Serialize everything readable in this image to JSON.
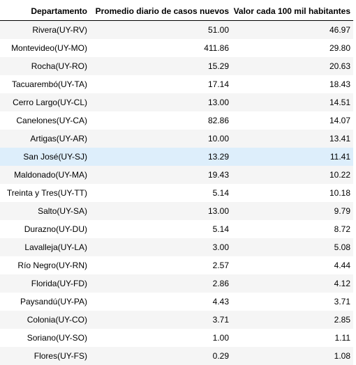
{
  "table": {
    "headers": [
      "Departamento",
      "Promedio diario de casos nuevos",
      "Valor cada 100 mil habitantes"
    ],
    "highlighted_row": 7,
    "rows": [
      [
        "Rivera(UY-RV)",
        "51.00",
        "46.97"
      ],
      [
        "Montevideo(UY-MO)",
        "411.86",
        "29.80"
      ],
      [
        "Rocha(UY-RO)",
        "15.29",
        "20.63"
      ],
      [
        "Tacuarembó(UY-TA)",
        "17.14",
        "18.43"
      ],
      [
        "Cerro Largo(UY-CL)",
        "13.00",
        "14.51"
      ],
      [
        "Canelones(UY-CA)",
        "82.86",
        "14.07"
      ],
      [
        "Artigas(UY-AR)",
        "10.00",
        "13.41"
      ],
      [
        "San José(UY-SJ)",
        "13.29",
        "11.41"
      ],
      [
        "Maldonado(UY-MA)",
        "19.43",
        "10.22"
      ],
      [
        "Treinta y Tres(UY-TT)",
        "5.14",
        "10.18"
      ],
      [
        "Salto(UY-SA)",
        "13.00",
        "9.79"
      ],
      [
        "Durazno(UY-DU)",
        "5.14",
        "8.72"
      ],
      [
        "Lavalleja(UY-LA)",
        "3.00",
        "5.08"
      ],
      [
        "Río Negro(UY-RN)",
        "2.57",
        "4.44"
      ],
      [
        "Florida(UY-FD)",
        "2.86",
        "4.12"
      ],
      [
        "Paysandú(UY-PA)",
        "4.43",
        "3.71"
      ],
      [
        "Colonia(UY-CO)",
        "3.71",
        "2.85"
      ],
      [
        "Soriano(UY-SO)",
        "1.00",
        "1.11"
      ],
      [
        "Flores(UY-FS)",
        "0.29",
        "1.08"
      ]
    ]
  }
}
